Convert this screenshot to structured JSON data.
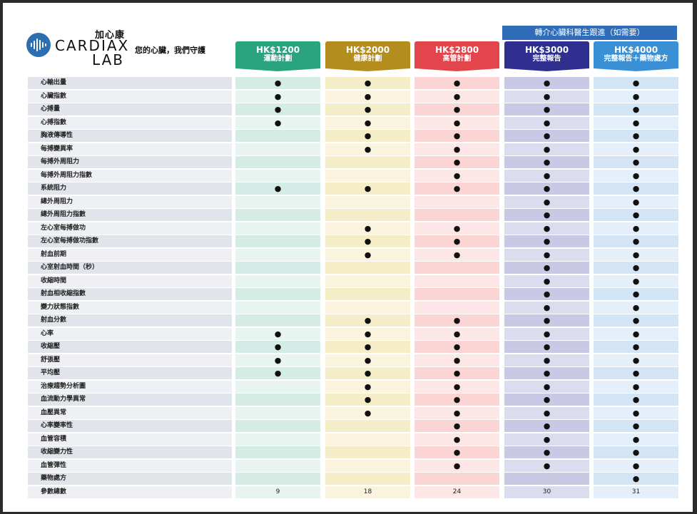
{
  "brand": {
    "cn": "加心康",
    "en_line1": "CARDIAX",
    "en_line2": "LAB"
  },
  "tagline": "您的心臟，我們守護",
  "referral": "轉介心臟科醫生跟進（如需要）",
  "plans": [
    {
      "price": "HK$1200",
      "name": "運動計劃",
      "color": "#2aa37f"
    },
    {
      "price": "HK$2000",
      "name": "健康計劃",
      "color": "#b38e1e"
    },
    {
      "price": "HK$2800",
      "name": "高管計劃",
      "color": "#e2454c"
    },
    {
      "price": "HK$3000",
      "name": "完整報告",
      "color": "#2e2f8f"
    },
    {
      "price": "HK$4000",
      "name": "完整報告＋藥物處方",
      "color": "#3b8fd4"
    }
  ],
  "column_colors": {
    "even": [
      "#d4ece5",
      "#f5ecc8",
      "#fbd4d4",
      "#c9c9e6",
      "#d3e5f5"
    ],
    "odd": [
      "#e7f4f0",
      "#faf4df",
      "#fde6e6",
      "#dcdcef",
      "#e4eff9"
    ],
    "label_even": "#e1e4ea",
    "label_odd": "#eef0f3"
  },
  "dot_symbol": "●",
  "rows": [
    {
      "label": "心輸出量",
      "marks": [
        1,
        1,
        1,
        1,
        1
      ]
    },
    {
      "label": "心臟指數",
      "marks": [
        1,
        1,
        1,
        1,
        1
      ]
    },
    {
      "label": "心搏量",
      "marks": [
        1,
        1,
        1,
        1,
        1
      ]
    },
    {
      "label": "心搏指數",
      "marks": [
        1,
        1,
        1,
        1,
        1
      ]
    },
    {
      "label": "胸液傳導性",
      "marks": [
        0,
        1,
        1,
        1,
        1
      ]
    },
    {
      "label": "每搏變異率",
      "marks": [
        0,
        1,
        1,
        1,
        1
      ]
    },
    {
      "label": "每搏外周阻力",
      "marks": [
        0,
        0,
        1,
        1,
        1
      ]
    },
    {
      "label": "每搏外周阻力指數",
      "marks": [
        0,
        0,
        1,
        1,
        1
      ]
    },
    {
      "label": "系統阻力",
      "marks": [
        1,
        1,
        1,
        1,
        1
      ]
    },
    {
      "label": "總外周阻力",
      "marks": [
        0,
        0,
        0,
        1,
        1
      ]
    },
    {
      "label": "總外周阻力指數",
      "marks": [
        0,
        0,
        0,
        1,
        1
      ]
    },
    {
      "label": "左心室每搏做功",
      "marks": [
        0,
        1,
        1,
        1,
        1
      ]
    },
    {
      "label": "左心室每搏做功指數",
      "marks": [
        0,
        1,
        1,
        1,
        1
      ]
    },
    {
      "label": "射血前期",
      "marks": [
        0,
        1,
        1,
        1,
        1
      ]
    },
    {
      "label": "心室射血時間（秒）",
      "marks": [
        0,
        0,
        0,
        1,
        1
      ]
    },
    {
      "label": "收縮時間",
      "marks": [
        0,
        0,
        0,
        1,
        1
      ]
    },
    {
      "label": "射血相收縮指數",
      "marks": [
        0,
        0,
        0,
        1,
        1
      ]
    },
    {
      "label": "變力狀態指數",
      "marks": [
        0,
        0,
        0,
        1,
        1
      ]
    },
    {
      "label": "射血分數",
      "marks": [
        0,
        1,
        1,
        1,
        1
      ]
    },
    {
      "label": "心率",
      "marks": [
        1,
        1,
        1,
        1,
        1
      ]
    },
    {
      "label": "收縮壓",
      "marks": [
        1,
        1,
        1,
        1,
        1
      ]
    },
    {
      "label": "舒張壓",
      "marks": [
        1,
        1,
        1,
        1,
        1
      ]
    },
    {
      "label": "平均壓",
      "marks": [
        1,
        1,
        1,
        1,
        1
      ]
    },
    {
      "label": "治療趨勢分析圖",
      "marks": [
        0,
        1,
        1,
        1,
        1
      ]
    },
    {
      "label": "血流動力學異常",
      "marks": [
        0,
        1,
        1,
        1,
        1
      ]
    },
    {
      "label": "血壓異常",
      "marks": [
        0,
        1,
        1,
        1,
        1
      ]
    },
    {
      "label": "心率變率性",
      "marks": [
        0,
        0,
        1,
        1,
        1
      ]
    },
    {
      "label": "血管容積",
      "marks": [
        0,
        0,
        1,
        1,
        1
      ]
    },
    {
      "label": "收縮變力性",
      "marks": [
        0,
        0,
        1,
        1,
        1
      ]
    },
    {
      "label": "血管彈性",
      "marks": [
        0,
        0,
        1,
        1,
        1
      ]
    },
    {
      "label": "藥物處方",
      "marks": [
        0,
        0,
        0,
        0,
        1
      ]
    }
  ],
  "totals": {
    "label": "參數總數",
    "values": [
      "9",
      "18",
      "24",
      "30",
      "31"
    ]
  }
}
